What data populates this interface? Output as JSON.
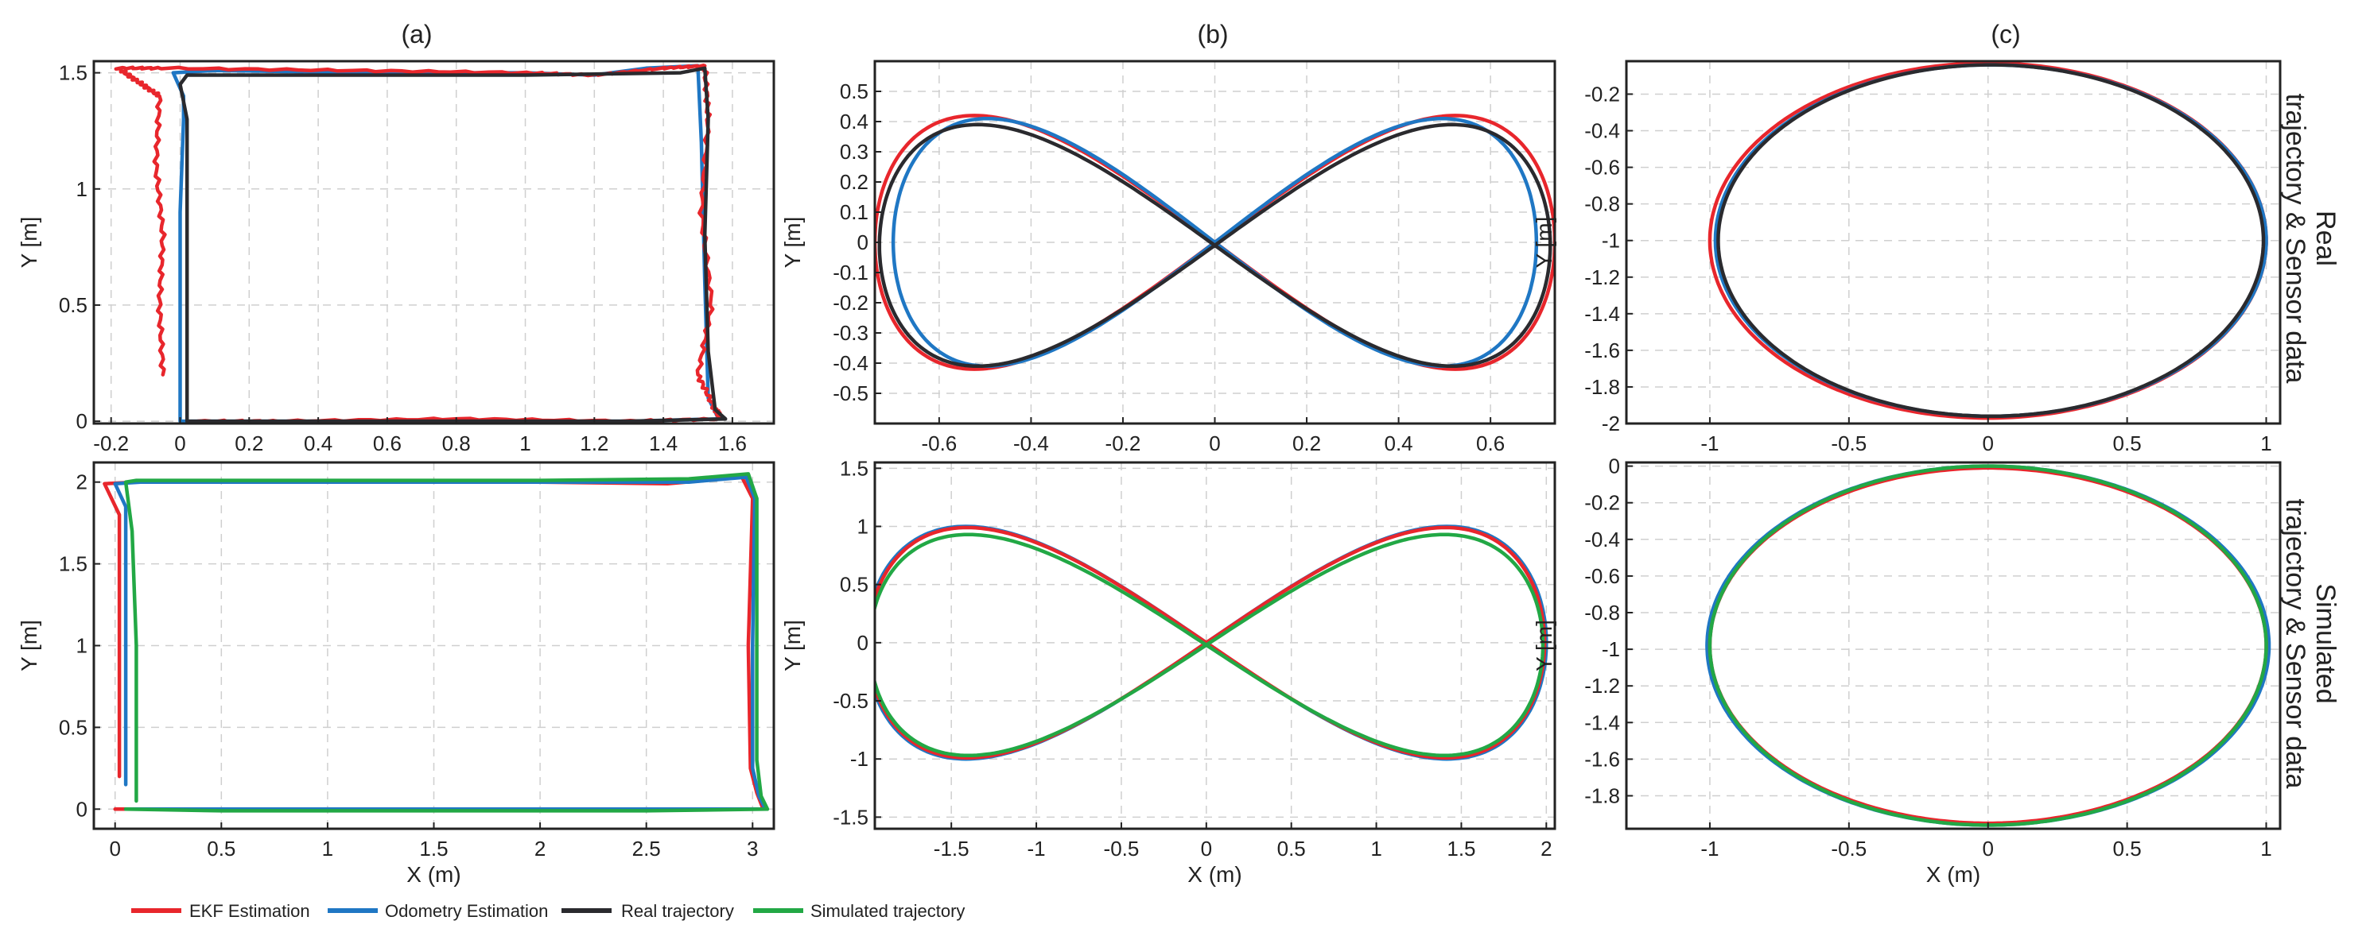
{
  "figure": {
    "column_titles": [
      "(a)",
      "(b)",
      "(c)"
    ],
    "row_labels": [
      [
        "Real",
        "trajectory & Sensor data"
      ],
      [
        "Simulated",
        "trajectory & Sensor data"
      ]
    ],
    "colors": {
      "ekf": "#e8262c",
      "odometry": "#1f77c4",
      "real": "#2a2a2e",
      "simulated": "#22a845"
    },
    "legend": [
      {
        "key": "ekf",
        "label": "EKF Estimation"
      },
      {
        "key": "odometry",
        "label": "Odometry Estimation"
      },
      {
        "key": "real",
        "label": "Real trajectory"
      },
      {
        "key": "simulated",
        "label": "Simulated trajectory"
      }
    ]
  },
  "chart_data": [
    {
      "id": "real-rect",
      "type": "line",
      "xlabel": "",
      "ylabel": "Y [m]",
      "xlim": [
        -0.25,
        1.72
      ],
      "ylim": [
        -0.01,
        1.55
      ],
      "xticks": [
        -0.2,
        0,
        0.2,
        0.4,
        0.6,
        0.8,
        1,
        1.2,
        1.4,
        1.6
      ],
      "xticklabels": [
        "-0.2",
        "0",
        "0.2",
        "0.4",
        "0.6",
        "0.8",
        "1",
        "1.2",
        "1.4",
        "1.6"
      ],
      "yticks": [
        0,
        0.5,
        1,
        1.5
      ],
      "yticklabels": [
        "0",
        "0.5",
        "1",
        "1.5"
      ],
      "series": [
        {
          "name": "Odometry Estimation",
          "color_key": "odometry",
          "x": [
            0.0,
            0.0,
            0.01,
            0.01,
            -0.02,
            0.1,
            0.6,
            1.0,
            1.2,
            1.35,
            1.5,
            1.51,
            1.52,
            1.53,
            1.56,
            1.3,
            0.8,
            0.2,
            0.0
          ],
          "y": [
            0.0,
            0.9,
            1.3,
            1.4,
            1.5,
            1.51,
            1.5,
            1.5,
            1.49,
            1.52,
            1.53,
            1.2,
            0.6,
            0.1,
            0.01,
            0.0,
            0.0,
            0.0,
            0.0
          ]
        },
        {
          "name": "EKF Estimation",
          "color_key": "ekf",
          "x": [
            -0.05,
            -0.06,
            -0.05,
            -0.07,
            -0.06,
            -0.12,
            -0.18,
            -0.05,
            0.5,
            1.0,
            1.2,
            1.4,
            1.52,
            1.53,
            1.51,
            1.54,
            1.5,
            1.55,
            1.57,
            1.3,
            0.8,
            0.3,
            0.05
          ],
          "y": [
            0.2,
            0.5,
            0.8,
            1.1,
            1.4,
            1.46,
            1.52,
            1.52,
            1.51,
            1.5,
            1.49,
            1.52,
            1.53,
            1.3,
            0.9,
            0.5,
            0.2,
            0.05,
            0.01,
            0.0,
            0.01,
            0.0,
            0.0
          ],
          "note": "jagged"
        },
        {
          "name": "Real trajectory",
          "color_key": "real",
          "x": [
            0.02,
            0.02,
            0.02,
            0.0,
            0.02,
            0.5,
            1.0,
            1.45,
            1.52,
            1.53,
            1.52,
            1.53,
            1.55,
            1.58,
            1.3,
            0.8,
            0.3,
            0.02
          ],
          "y": [
            0.0,
            0.6,
            1.3,
            1.45,
            1.49,
            1.49,
            1.49,
            1.5,
            1.52,
            1.3,
            0.8,
            0.3,
            0.05,
            0.01,
            0.0,
            0.0,
            0.0,
            0.0
          ]
        }
      ]
    },
    {
      "id": "real-eight",
      "type": "line",
      "xlabel": "",
      "ylabel": "Y [m]",
      "xlim": [
        -0.74,
        0.74
      ],
      "ylim": [
        -0.6,
        0.6
      ],
      "xticks": [
        -0.6,
        -0.4,
        -0.2,
        0,
        0.2,
        0.4,
        0.6
      ],
      "xticklabels": [
        "-0.6",
        "-0.4",
        "-0.2",
        "0",
        "0.2",
        "0.4",
        "0.6"
      ],
      "yticks": [
        -0.5,
        -0.4,
        -0.3,
        -0.2,
        -0.1,
        0,
        0.1,
        0.2,
        0.3,
        0.4,
        0.5
      ],
      "yticklabels": [
        "-0.5",
        "-0.4",
        "-0.3",
        "-0.2",
        "-0.1",
        "0",
        "0.1",
        "0.2",
        "0.3",
        "0.4",
        "0.5"
      ],
      "series": [
        {
          "name": "EKF Estimation",
          "color_key": "ekf",
          "kind": "lemniscate",
          "a": 0.74,
          "b": 0.42,
          "xshift": 0.0,
          "yshift": 0.0
        },
        {
          "name": "Odometry Estimation",
          "color_key": "odometry",
          "kind": "lemniscate",
          "a": 0.7,
          "b": 0.41,
          "xshift": 0.0,
          "yshift": 0.0
        },
        {
          "name": "Real trajectory",
          "color_key": "real",
          "kind": "lemniscate",
          "a": 0.73,
          "b": 0.4,
          "xshift": 0.0,
          "yshift": -0.01
        }
      ]
    },
    {
      "id": "real-ellipse",
      "type": "line",
      "xlabel": "",
      "ylabel": "Y [m]",
      "xlim": [
        -1.3,
        1.05
      ],
      "ylim": [
        -2.0,
        -0.02
      ],
      "xticks": [
        -1,
        -0.5,
        0,
        0.5,
        1
      ],
      "xticklabels": [
        "-1",
        "-0.5",
        "0",
        "0.5",
        "1"
      ],
      "yticks": [
        -2,
        -1.8,
        -1.6,
        -1.4,
        -1.2,
        -1,
        -0.8,
        -0.6,
        -0.4,
        -0.2
      ],
      "yticklabels": [
        "-2",
        "-1.8",
        "-1.6",
        "-1.4",
        "-1.2",
        "-1",
        "-0.8",
        "-0.6",
        "-0.4",
        "-0.2"
      ],
      "series": [
        {
          "name": "EKF Estimation",
          "color_key": "ekf",
          "kind": "ellipse",
          "cx": 0.0,
          "cy": -1.0,
          "rx": 1.0,
          "ry": 0.97
        },
        {
          "name": "Odometry Estimation",
          "color_key": "odometry",
          "kind": "ellipse",
          "cx": 0.01,
          "cy": -1.0,
          "rx": 0.99,
          "ry": 0.96
        },
        {
          "name": "Real trajectory",
          "color_key": "real",
          "kind": "ellipse",
          "cx": 0.01,
          "cy": -1.0,
          "rx": 0.98,
          "ry": 0.96
        }
      ]
    },
    {
      "id": "sim-rect",
      "type": "line",
      "xlabel": "X (m)",
      "ylabel": "Y [m]",
      "xlim": [
        -0.1,
        3.1
      ],
      "ylim": [
        -0.12,
        2.12
      ],
      "xticks": [
        0,
        0.5,
        1,
        1.5,
        2,
        2.5,
        3
      ],
      "xticklabels": [
        "0",
        "0.5",
        "1",
        "1.5",
        "2",
        "2.5",
        "3"
      ],
      "yticks": [
        0,
        0.5,
        1,
        1.5,
        2
      ],
      "yticklabels": [
        "0",
        "0.5",
        "1",
        "1.5",
        "2"
      ],
      "series": [
        {
          "name": "EKF Estimation",
          "color_key": "ekf",
          "x": [
            0.02,
            0.02,
            0.02,
            -0.05,
            0.1,
            1.0,
            2.0,
            2.6,
            2.95,
            3.0,
            2.98,
            2.99,
            3.02,
            3.05,
            2.5,
            1.5,
            0.5,
            0.0
          ],
          "y": [
            0.2,
            1.0,
            1.8,
            1.99,
            2.0,
            2.0,
            2.0,
            1.99,
            2.03,
            1.9,
            1.0,
            0.25,
            0.1,
            0.0,
            0.0,
            0.0,
            0.0,
            0.0
          ]
        },
        {
          "name": "Odometry Estimation",
          "color_key": "odometry",
          "x": [
            0.05,
            0.05,
            0.05,
            0.0,
            0.12,
            1.0,
            2.0,
            2.7,
            2.97,
            3.01,
            3.0,
            3.0,
            3.03,
            3.06,
            2.5,
            1.5,
            0.5,
            0.05
          ],
          "y": [
            0.15,
            1.0,
            1.85,
            1.99,
            2.0,
            2.0,
            2.0,
            2.0,
            2.03,
            1.9,
            1.0,
            0.25,
            0.08,
            0.0,
            0.0,
            0.0,
            0.0,
            0.0
          ]
        },
        {
          "name": "Simulated trajectory",
          "color_key": "simulated",
          "x": [
            0.1,
            0.1,
            0.08,
            0.05,
            0.1,
            1.0,
            2.0,
            2.7,
            2.98,
            3.02,
            3.02,
            3.02,
            3.04,
            3.07,
            2.5,
            1.5,
            0.5,
            0.05
          ],
          "y": [
            0.05,
            1.0,
            1.7,
            2.0,
            2.01,
            2.01,
            2.01,
            2.02,
            2.05,
            1.9,
            1.0,
            0.3,
            0.08,
            0.0,
            -0.01,
            -0.01,
            -0.01,
            0.0
          ]
        }
      ]
    },
    {
      "id": "sim-eight",
      "type": "line",
      "xlabel": "X (m)",
      "ylabel": "Y [m]",
      "xlim": [
        -1.95,
        2.05
      ],
      "ylim": [
        -1.6,
        1.55
      ],
      "xticks": [
        -1.5,
        -1,
        -0.5,
        0,
        0.5,
        1,
        1.5,
        2
      ],
      "xticklabels": [
        "-1.5",
        "-1",
        "-0.5",
        "0",
        "0.5",
        "1",
        "1.5",
        "2"
      ],
      "yticks": [
        -1.5,
        -1,
        -0.5,
        0,
        0.5,
        1,
        1.5
      ],
      "yticklabels": [
        "-1.5",
        "-1",
        "-0.5",
        "0",
        "0.5",
        "1",
        "1.5"
      ],
      "series": [
        {
          "name": "Odometry Estimation",
          "color_key": "odometry",
          "kind": "lemniscate",
          "a": 2.0,
          "b": 1.0,
          "xshift": 0.0,
          "yshift": 0.0
        },
        {
          "name": "EKF Estimation",
          "color_key": "ekf",
          "kind": "lemniscate",
          "a": 1.99,
          "b": 0.99,
          "xshift": 0.0,
          "yshift": 0.0
        },
        {
          "name": "Simulated trajectory",
          "color_key": "simulated",
          "kind": "lemniscate",
          "a": 1.98,
          "b": 0.95,
          "xshift": 0.0,
          "yshift": -0.02
        }
      ]
    },
    {
      "id": "sim-ellipse",
      "type": "line",
      "xlabel": "X (m)",
      "ylabel": "Y [m]",
      "xlim": [
        -1.3,
        1.05
      ],
      "ylim": [
        -1.98,
        0.02
      ],
      "xticks": [
        -1,
        -0.5,
        0,
        0.5,
        1
      ],
      "xticklabels": [
        "-1",
        "-0.5",
        "0",
        "0.5",
        "1"
      ],
      "yticks": [
        -1.8,
        -1.6,
        -1.4,
        -1.2,
        -1,
        -0.8,
        -0.6,
        -0.4,
        -0.2,
        0
      ],
      "yticklabels": [
        "-1.8",
        "-1.6",
        "-1.4",
        "-1.2",
        "-1",
        "-0.8",
        "-0.6",
        "-0.4",
        "-0.2",
        "0"
      ],
      "series": [
        {
          "name": "Odometry Estimation",
          "color_key": "odometry",
          "kind": "ellipse",
          "cx": 0.0,
          "cy": -0.98,
          "rx": 1.01,
          "ry": 0.98
        },
        {
          "name": "EKF Estimation",
          "color_key": "ekf",
          "kind": "ellipse",
          "cx": 0.0,
          "cy": -0.98,
          "rx": 1.0,
          "ry": 0.97
        },
        {
          "name": "Simulated trajectory",
          "color_key": "simulated",
          "kind": "ellipse",
          "cx": 0.0,
          "cy": -0.98,
          "rx": 1.0,
          "ry": 0.98
        }
      ]
    }
  ]
}
